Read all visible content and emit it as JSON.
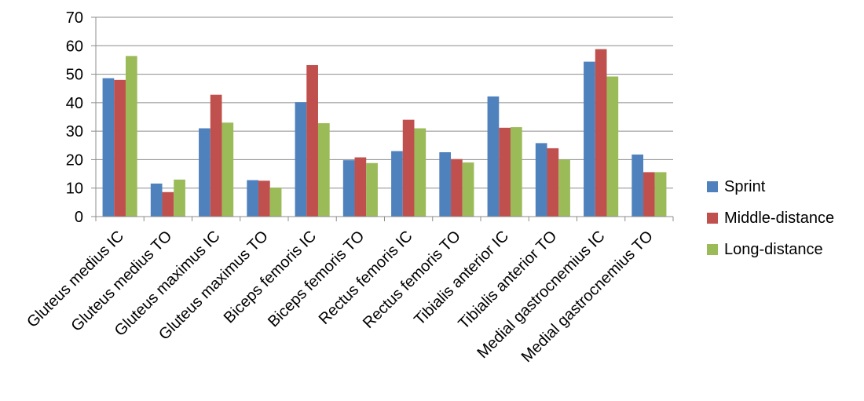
{
  "chart_data": {
    "type": "bar",
    "title": "",
    "xlabel": "",
    "ylabel": "",
    "ylim": [
      0,
      70
    ],
    "yticks": [
      0,
      10,
      20,
      30,
      40,
      50,
      60,
      70
    ],
    "grid": true,
    "legend_position": "right",
    "categories": [
      "Gluteus medius IC",
      "Gluteus medius TO",
      "Gluteus maximus IC",
      "Gluteus maximus TO",
      "Biceps femoris IC",
      "Biceps femoris TO",
      "Rectus femoris IC",
      "Rectus femoris TO",
      "Tibialis anterior IC",
      "Tibialis anterior TO",
      "Medial gastrocnemius IC",
      "Medial gastrocnemius TO"
    ],
    "series": [
      {
        "name": "Sprint",
        "color": "#4F81BD",
        "values": [
          48.6,
          11.6,
          31.0,
          12.8,
          40.2,
          19.8,
          23.0,
          22.6,
          42.2,
          25.8,
          54.4,
          21.8
        ]
      },
      {
        "name": "Middle-distance",
        "color": "#C0504D",
        "values": [
          48.0,
          8.6,
          42.8,
          12.6,
          53.2,
          20.8,
          34.0,
          20.2,
          31.2,
          24.0,
          58.8,
          15.6
        ]
      },
      {
        "name": "Long-distance",
        "color": "#9BBB59",
        "values": [
          56.4,
          13.0,
          33.0,
          10.2,
          32.8,
          18.8,
          31.0,
          19.0,
          31.4,
          20.0,
          49.2,
          15.6
        ]
      }
    ]
  }
}
